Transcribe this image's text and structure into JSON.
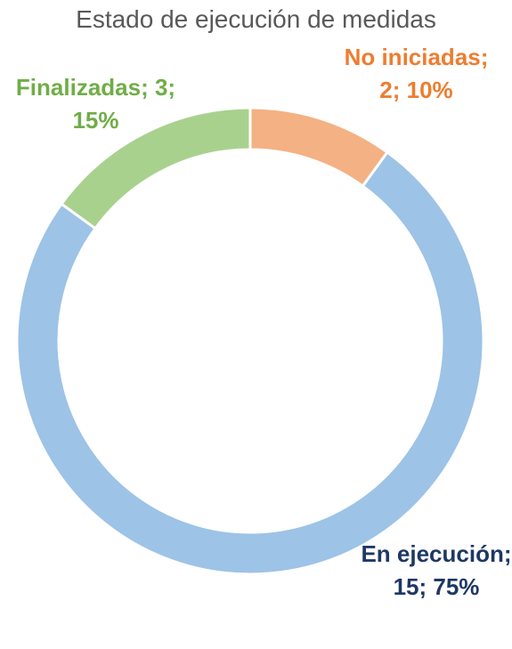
{
  "chart_data": {
    "type": "donut",
    "title": "Estado de ejecución de medidas",
    "categories": [
      "No iniciadas",
      "En ejecución",
      "Finalizadas"
    ],
    "values": [
      2,
      15,
      3
    ],
    "value_labels": [
      "No iniciadas; 2; 10%",
      "En ejecución; 15; 75%",
      "Finalizadas; 3; 15%"
    ],
    "colors": [
      "#f4b183",
      "#9dc3e6",
      "#a9d18e"
    ],
    "label_colors": [
      "#ed7d31",
      "#1f3864",
      "#70ad47"
    ]
  }
}
